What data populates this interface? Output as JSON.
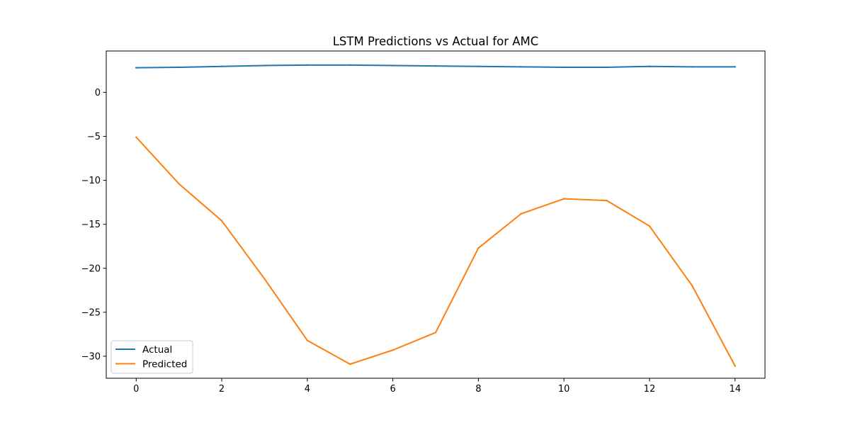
{
  "chart_data": {
    "type": "line",
    "title": "LSTM Predictions vs Actual for AMC",
    "xlabel": "",
    "ylabel": "",
    "xlim": [
      -0.7,
      14.7
    ],
    "ylim": [
      -32.5,
      4.7
    ],
    "xticks": [
      0,
      2,
      4,
      6,
      8,
      10,
      12,
      14
    ],
    "yticks": [
      0,
      -5,
      -10,
      -15,
      -20,
      -25,
      -30
    ],
    "grid": false,
    "legend_position": "lower-left",
    "x": [
      0,
      1,
      2,
      3,
      4,
      5,
      6,
      7,
      8,
      9,
      10,
      11,
      12,
      13,
      14
    ],
    "series": [
      {
        "name": "Actual",
        "color": "#1f77b4",
        "values": [
          2.8,
          2.85,
          2.95,
          3.05,
          3.1,
          3.1,
          3.05,
          3.0,
          2.95,
          2.9,
          2.85,
          2.85,
          2.95,
          2.9,
          2.9
        ]
      },
      {
        "name": "Predicted",
        "color": "#ff7f0e",
        "values": [
          -5.1,
          -10.4,
          -14.6,
          -21.2,
          -28.2,
          -30.9,
          -29.3,
          -27.3,
          -17.7,
          -13.8,
          -12.1,
          -12.3,
          -15.2,
          -22.0,
          -31.1
        ]
      }
    ]
  }
}
